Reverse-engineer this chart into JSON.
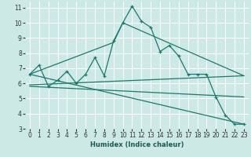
{
  "xlabel": "Humidex (Indice chaleur)",
  "xlim": [
    -0.5,
    23.5
  ],
  "ylim": [
    3,
    11.4
  ],
  "yticks": [
    3,
    4,
    5,
    6,
    7,
    8,
    9,
    10,
    11
  ],
  "xticks": [
    0,
    1,
    2,
    3,
    4,
    5,
    6,
    7,
    8,
    9,
    10,
    11,
    12,
    13,
    14,
    15,
    16,
    17,
    18,
    19,
    20,
    21,
    22,
    23
  ],
  "bg_color": "#cce9e5",
  "grid_color": "#ffffff",
  "line_color": "#1a7a6e",
  "lines": [
    {
      "x": [
        0,
        1,
        2,
        3,
        4,
        5,
        6,
        7,
        8,
        9,
        10,
        11,
        12,
        13,
        14,
        15,
        16,
        17,
        18,
        19,
        20,
        21,
        22,
        23
      ],
      "y": [
        6.6,
        7.2,
        5.8,
        6.2,
        6.8,
        6.0,
        6.6,
        7.7,
        6.5,
        8.8,
        10.0,
        11.1,
        10.1,
        9.7,
        8.1,
        8.5,
        7.8,
        6.6,
        6.6,
        6.6,
        5.1,
        3.9,
        3.3,
        3.3
      ],
      "marker": true,
      "lw": 0.9
    },
    {
      "x": [
        0,
        9,
        10,
        23
      ],
      "y": [
        6.6,
        8.7,
        10.0,
        6.5
      ],
      "marker": false,
      "lw": 0.9
    },
    {
      "x": [
        0,
        23
      ],
      "y": [
        5.9,
        6.5
      ],
      "marker": false,
      "lw": 0.9
    },
    {
      "x": [
        0,
        23
      ],
      "y": [
        5.8,
        5.1
      ],
      "marker": false,
      "lw": 0.9
    },
    {
      "x": [
        0,
        23
      ],
      "y": [
        6.6,
        3.3
      ],
      "marker": false,
      "lw": 0.9
    }
  ]
}
